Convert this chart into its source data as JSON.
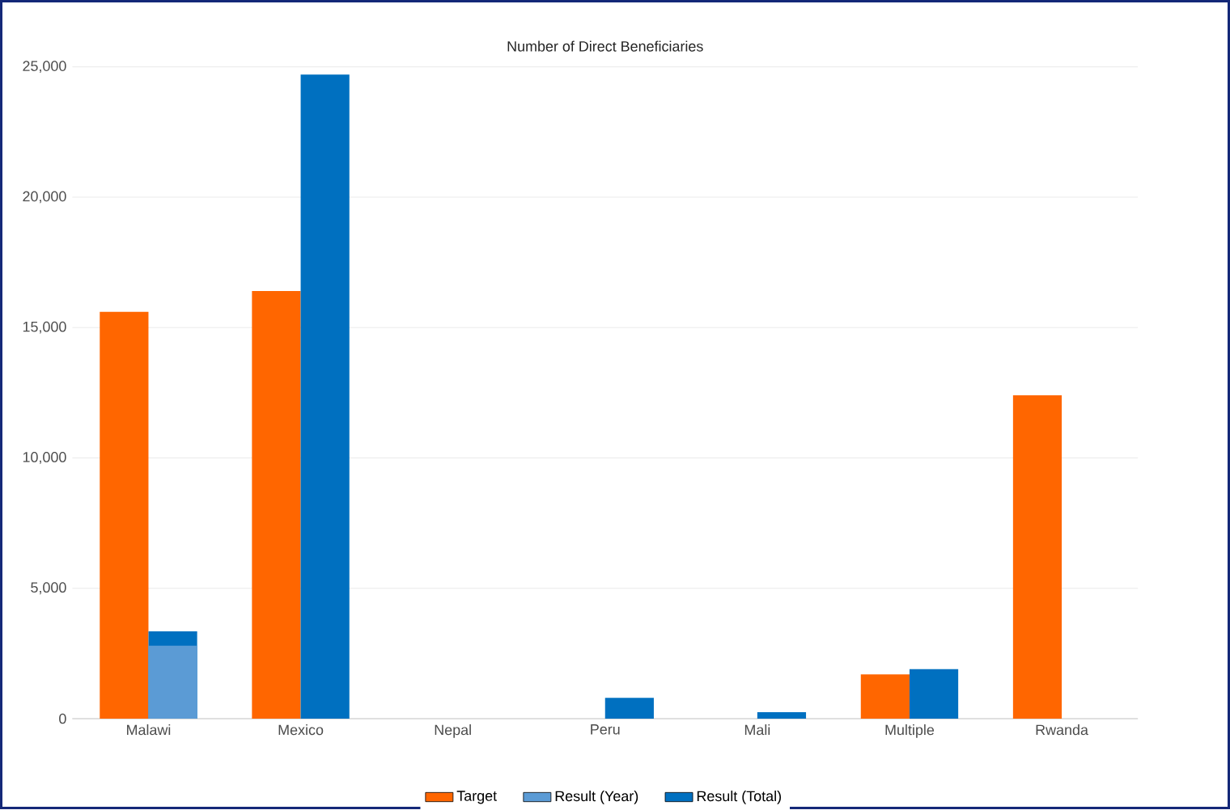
{
  "chart_data": {
    "type": "bar",
    "title": "Number of Direct Beneficiaries",
    "categories": [
      "Malawi",
      "Mexico",
      "Nepal",
      "Peru",
      "Mali",
      "Multiple",
      "Rwanda"
    ],
    "series": [
      {
        "name": "Target",
        "color": "#ff6600",
        "values": [
          15600,
          16400,
          0,
          0,
          0,
          1700,
          12400
        ]
      },
      {
        "name": "Result (Year)",
        "color": "#5b9bd5",
        "values": [
          2800,
          0,
          0,
          0,
          0,
          0,
          0
        ]
      },
      {
        "name": "Result (Total)",
        "color": "#0070c0",
        "values": [
          3350,
          24700,
          0,
          800,
          250,
          1900,
          0
        ]
      }
    ],
    "ylim": [
      0,
      25000
    ],
    "yticks": [
      {
        "value": 0,
        "label": "0"
      },
      {
        "value": 5000,
        "label": "5,000"
      },
      {
        "value": 10000,
        "label": "10,000"
      },
      {
        "value": 15000,
        "label": "15,000"
      },
      {
        "value": 20000,
        "label": "20,000"
      },
      {
        "value": 25000,
        "label": "25,000"
      }
    ],
    "grid": "y",
    "legend": "bottom"
  }
}
